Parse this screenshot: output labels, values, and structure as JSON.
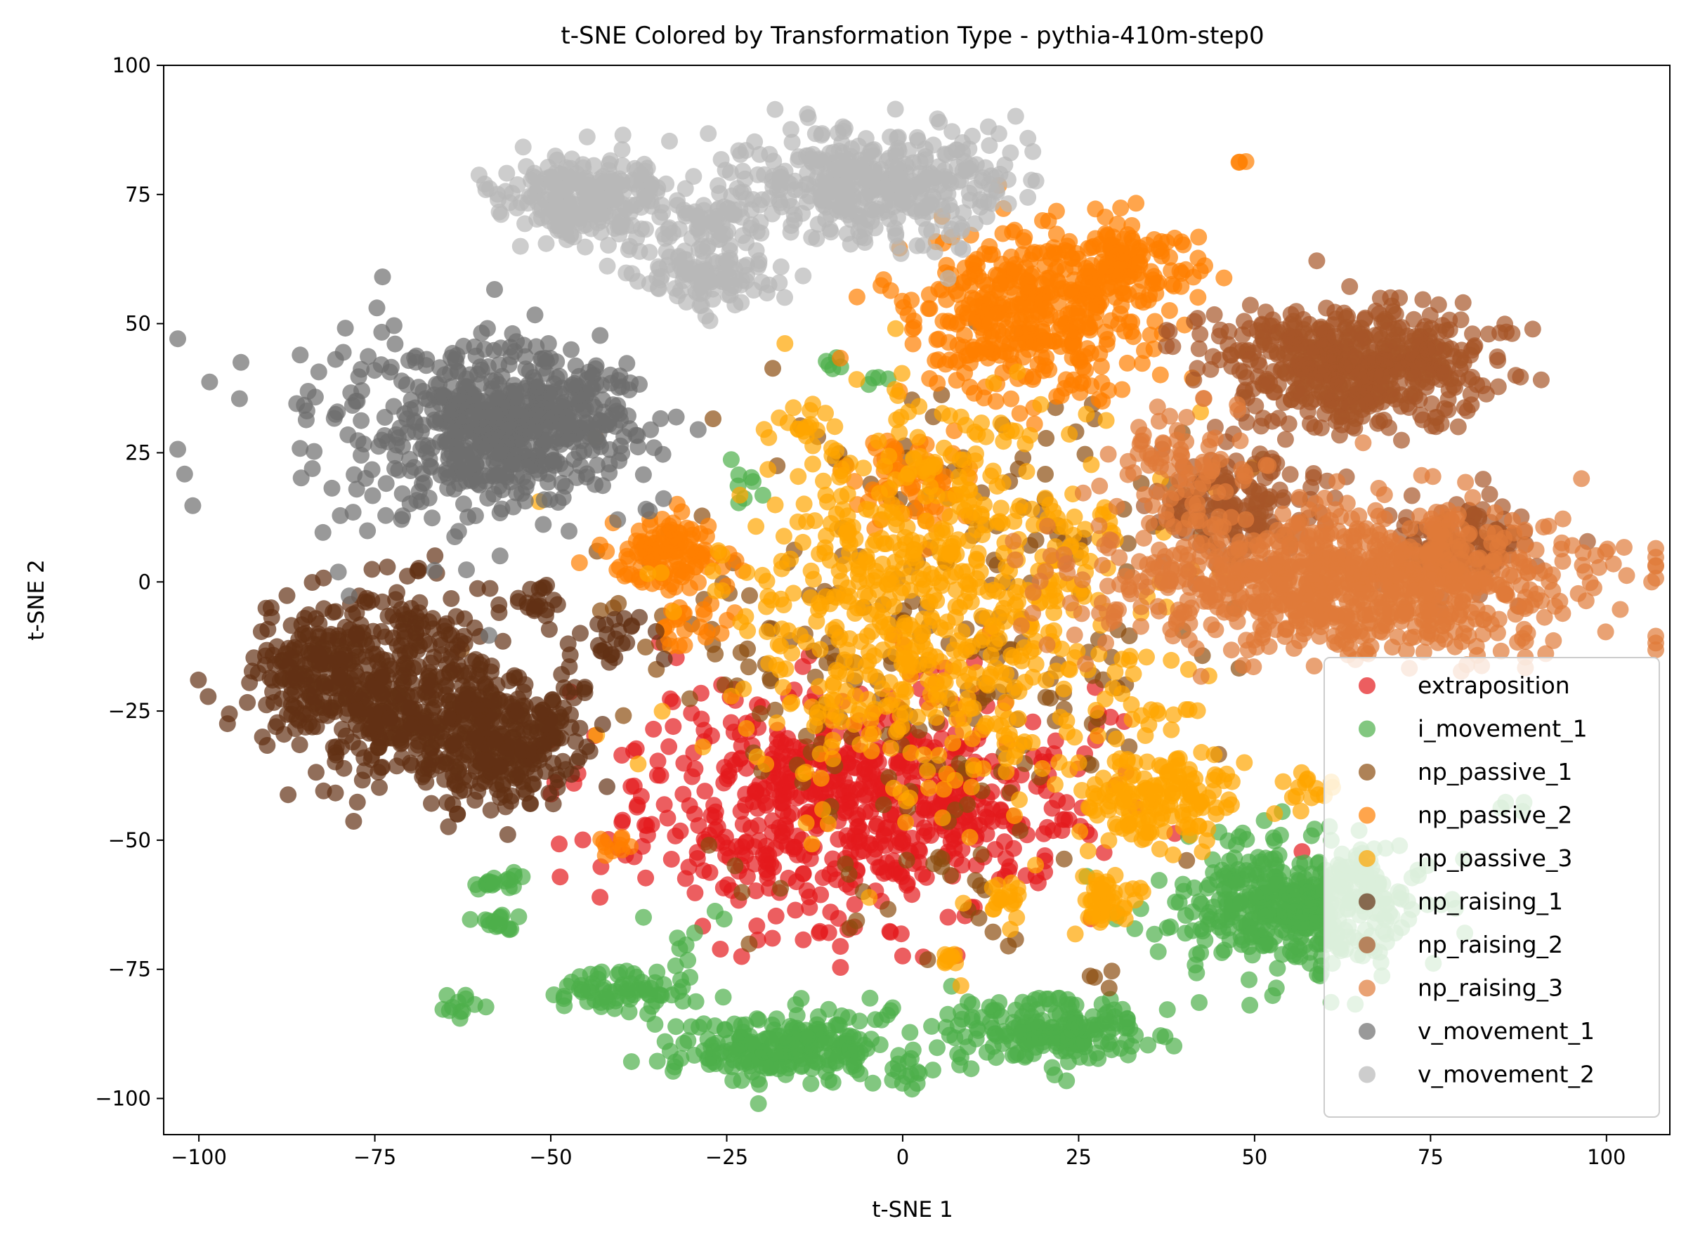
{
  "chart_data": {
    "type": "scatter",
    "title": "t-SNE Colored by Transformation Type - pythia-410m-step0",
    "xlabel": "t-SNE 1",
    "ylabel": "t-SNE 2",
    "xlim": [
      -105,
      109
    ],
    "ylim": [
      -107,
      100
    ],
    "xticks": [
      -100,
      -75,
      -50,
      -25,
      0,
      25,
      50,
      75,
      100
    ],
    "yticks": [
      -100,
      -75,
      -50,
      -25,
      0,
      25,
      50,
      75,
      100
    ],
    "xtick_labels": [
      "−100",
      "−75",
      "−50",
      "−25",
      "0",
      "25",
      "50",
      "75",
      "100"
    ],
    "ytick_labels": [
      "−100",
      "−75",
      "−50",
      "−25",
      "0",
      "25",
      "50",
      "75",
      "100"
    ],
    "grid": false,
    "legend_position": "lower-right",
    "point_alpha": 0.7,
    "series": [
      {
        "name": "extraposition",
        "color": "#e41a1c",
        "clusters": [
          {
            "cx": -8,
            "cy": -43,
            "rx": 29,
            "ry": 20,
            "n": 700
          }
        ]
      },
      {
        "name": "i_movement_1",
        "color": "#4daf4a",
        "clusters": [
          {
            "cx": 56,
            "cy": -63,
            "rx": 15,
            "ry": 11,
            "n": 450
          },
          {
            "cx": -17,
            "cy": -90,
            "rx": 14,
            "ry": 6,
            "n": 240
          },
          {
            "cx": 21,
            "cy": -87,
            "rx": 14,
            "ry": 6,
            "n": 200
          },
          {
            "cx": -40,
            "cy": -79,
            "rx": 8,
            "ry": 4,
            "n": 70
          },
          {
            "cx": -57,
            "cy": -58,
            "rx": 4,
            "ry": 2,
            "n": 20
          },
          {
            "cx": -57,
            "cy": -67,
            "rx": 3,
            "ry": 3,
            "n": 15
          },
          {
            "cx": -63,
            "cy": -82,
            "rx": 3,
            "ry": 2,
            "n": 12
          },
          {
            "cx": 1,
            "cy": -95,
            "rx": 3,
            "ry": 3,
            "n": 12
          },
          {
            "cx": -10,
            "cy": 41,
            "rx": 2,
            "ry": 2,
            "n": 5
          },
          {
            "cx": -22,
            "cy": 17,
            "rx": 4,
            "ry": 5,
            "n": 8
          },
          {
            "cx": 88,
            "cy": -44,
            "rx": 2,
            "ry": 2,
            "n": 4
          },
          {
            "cx": -4,
            "cy": 39,
            "rx": 3,
            "ry": 1,
            "n": 4
          },
          {
            "cx": -33,
            "cy": -70,
            "rx": 6,
            "ry": 6,
            "n": 10
          }
        ]
      },
      {
        "name": "np_passive_1",
        "color": "#8b4d10",
        "clusters": [
          {
            "cx": 5,
            "cy": -10,
            "rx": 38,
            "ry": 42,
            "n": 260
          },
          {
            "cx": 10,
            "cy": -60,
            "rx": 8,
            "ry": 12,
            "n": 15
          },
          {
            "cx": 28,
            "cy": -77,
            "rx": 3,
            "ry": 2,
            "n": 4
          }
        ]
      },
      {
        "name": "np_passive_2",
        "color": "#ff7f00",
        "clusters": [
          {
            "cx": 18,
            "cy": 52,
            "rx": 16,
            "ry": 14,
            "n": 420
          },
          {
            "cx": 32,
            "cy": 62,
            "rx": 8,
            "ry": 7,
            "n": 110
          },
          {
            "cx": -33,
            "cy": 6,
            "rx": 7,
            "ry": 6,
            "n": 120
          },
          {
            "cx": 2,
            "cy": 20,
            "rx": 8,
            "ry": 9,
            "n": 70
          },
          {
            "cx": -30,
            "cy": -8,
            "rx": 4,
            "ry": 4,
            "n": 25
          },
          {
            "cx": -41,
            "cy": -51,
            "rx": 3,
            "ry": 2,
            "n": 10
          },
          {
            "cx": 48,
            "cy": 82,
            "rx": 1,
            "ry": 1,
            "n": 3
          }
        ]
      },
      {
        "name": "np_passive_3",
        "color": "#ffa500",
        "clusters": [
          {
            "cx": 5,
            "cy": -5,
            "rx": 26,
            "ry": 34,
            "n": 700
          },
          {
            "cx": 36,
            "cy": -42,
            "rx": 10,
            "ry": 8,
            "n": 160
          },
          {
            "cx": 29,
            "cy": -62,
            "rx": 4,
            "ry": 4,
            "n": 50
          },
          {
            "cx": 14,
            "cy": -62,
            "rx": 3,
            "ry": 4,
            "n": 20
          },
          {
            "cx": 7,
            "cy": -74,
            "rx": 2,
            "ry": 3,
            "n": 10
          },
          {
            "cx": 58,
            "cy": -40,
            "rx": 4,
            "ry": 4,
            "n": 15
          },
          {
            "cx": 36,
            "cy": -26,
            "rx": 3,
            "ry": 2,
            "n": 10
          },
          {
            "cx": -15,
            "cy": 30,
            "rx": 5,
            "ry": 3,
            "n": 15
          }
        ]
      },
      {
        "name": "np_raising_1",
        "color": "#633114",
        "clusters": [
          {
            "cx": -72,
            "cy": -20,
            "rx": 14,
            "ry": 17,
            "n": 420
          },
          {
            "cx": -57,
            "cy": -31,
            "rx": 11,
            "ry": 11,
            "n": 300
          },
          {
            "cx": -84,
            "cy": -18,
            "rx": 8,
            "ry": 12,
            "n": 130
          },
          {
            "cx": -41,
            "cy": -11,
            "rx": 6,
            "ry": 6,
            "n": 25
          },
          {
            "cx": -52,
            "cy": -4,
            "rx": 4,
            "ry": 4,
            "n": 20
          }
        ]
      },
      {
        "name": "np_raising_2",
        "color": "#a65628",
        "clusters": [
          {
            "cx": 64,
            "cy": 42,
            "rx": 18,
            "ry": 11,
            "n": 560
          },
          {
            "cx": 48,
            "cy": 14,
            "rx": 10,
            "ry": 10,
            "n": 160
          },
          {
            "cx": 80,
            "cy": 8,
            "rx": 10,
            "ry": 9,
            "n": 120
          }
        ]
      },
      {
        "name": "np_raising_3",
        "color": "#e07b39",
        "clusters": [
          {
            "cx": 63,
            "cy": 0,
            "rx": 30,
            "ry": 13,
            "n": 900
          },
          {
            "cx": 40,
            "cy": 22,
            "rx": 10,
            "ry": 12,
            "n": 80
          }
        ]
      },
      {
        "name": "v_movement_1",
        "color": "#6e6e6e",
        "clusters": [
          {
            "cx": -55,
            "cy": 31,
            "rx": 16,
            "ry": 13,
            "n": 500
          },
          {
            "cx": -65,
            "cy": 28,
            "rx": 25,
            "ry": 20,
            "n": 180
          }
        ]
      },
      {
        "name": "v_movement_2",
        "color": "#b8b8b8",
        "clusters": [
          {
            "cx": -45,
            "cy": 74,
            "rx": 10,
            "ry": 8,
            "n": 260
          },
          {
            "cx": -5,
            "cy": 77,
            "rx": 19,
            "ry": 10,
            "n": 420
          },
          {
            "cx": -28,
            "cy": 60,
            "rx": 9,
            "ry": 6,
            "n": 120
          },
          {
            "cx": -27,
            "cy": 71,
            "rx": 4,
            "ry": 4,
            "n": 40
          }
        ]
      }
    ]
  }
}
